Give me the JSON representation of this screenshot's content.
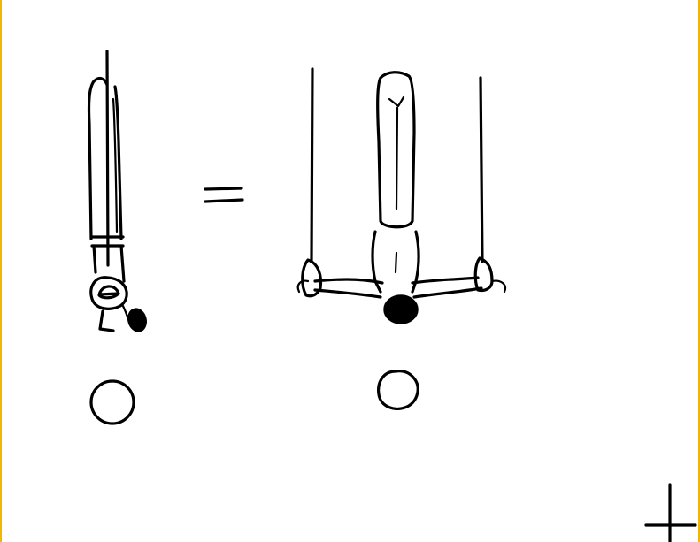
{
  "colors": {
    "frame": "#f2b705",
    "ink": "#000000",
    "background": "#ffffff"
  },
  "figures": [
    {
      "name": "gymnast-side-view",
      "description_icon": "inverted-hang-side-icon"
    },
    {
      "name": "gymnast-front-view",
      "description_icon": "inverted-hang-front-icon"
    }
  ],
  "symbols": {
    "equals": "equals-sign-icon",
    "circle_marks": [
      "circle-mark-icon",
      "circle-mark-icon"
    ],
    "corner_cross": "crosshair-icon"
  }
}
